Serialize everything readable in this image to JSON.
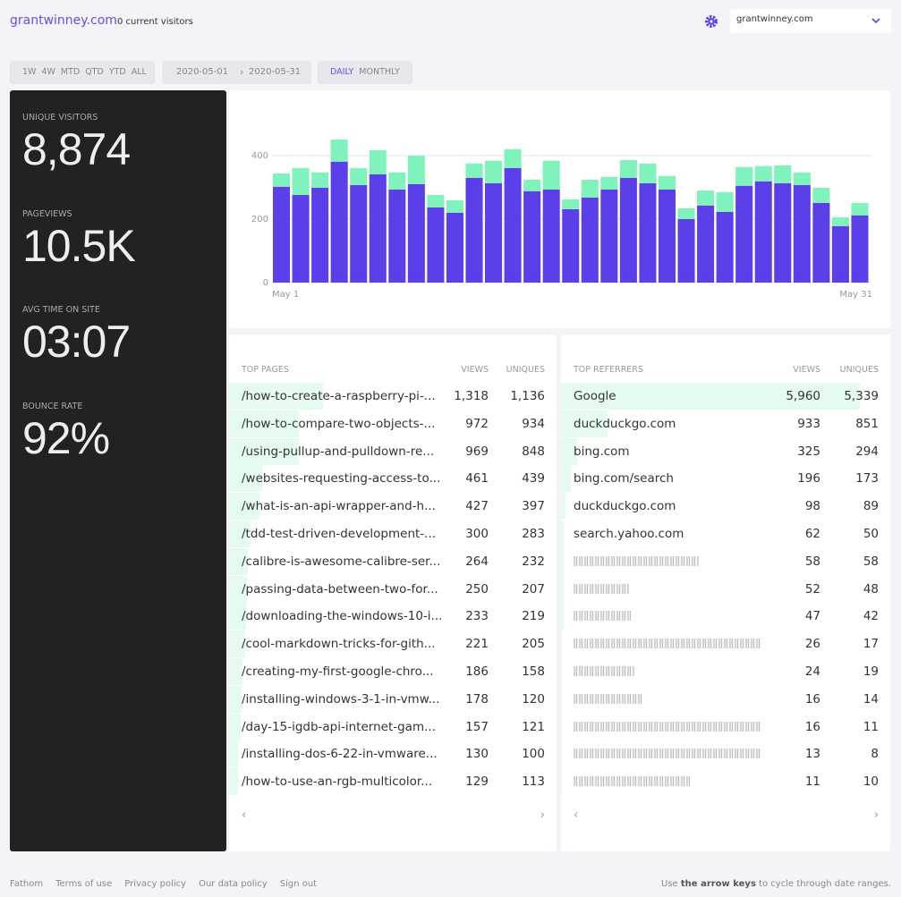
{
  "header": {
    "site": "grantwinney.com",
    "visitors": "0 current visitors",
    "site_select": "grantwinney.com"
  },
  "ranges": [
    "1W",
    "4W",
    "MTD",
    "QTD",
    "YTD",
    "ALL"
  ],
  "dates": {
    "from": "2020-05-01",
    "separator": "›",
    "to": "2020-05-31"
  },
  "intervals": [
    "DAILY",
    "MONTHLY"
  ],
  "stats": [
    {
      "label": "UNIQUE VISITORS",
      "value": "8,874"
    },
    {
      "label": "PAGEVIEWS",
      "value": "10.5K"
    },
    {
      "label": "AVG TIME ON SITE",
      "value": "03:07"
    },
    {
      "label": "BOUNCE RATE",
      "value": "92%"
    }
  ],
  "chart_data": {
    "type": "bar",
    "stacked": true,
    "categories": [
      "May 1",
      null,
      null,
      null,
      null,
      null,
      null,
      null,
      null,
      null,
      null,
      null,
      null,
      null,
      null,
      null,
      null,
      null,
      null,
      null,
      null,
      null,
      null,
      null,
      null,
      null,
      null,
      null,
      null,
      null,
      "May 31"
    ],
    "series": [
      {
        "color": "#5b3fe9",
        "values": [
          302,
          276,
          299,
          381,
          307,
          341,
          293,
          310,
          237,
          220,
          330,
          313,
          361,
          288,
          293,
          231,
          268,
          293,
          330,
          313,
          293,
          200,
          243,
          223,
          305,
          319,
          313,
          307,
          251,
          178,
          212
        ]
      },
      {
        "color": "#80f2bb",
        "values": [
          42,
          85,
          48,
          70,
          54,
          76,
          54,
          90,
          39,
          39,
          45,
          71,
          59,
          36,
          91,
          31,
          56,
          40,
          56,
          62,
          43,
          34,
          47,
          62,
          59,
          48,
          56,
          40,
          48,
          28,
          39
        ]
      }
    ],
    "ylim": [
      0,
      500
    ],
    "yticks": [
      0,
      200,
      400
    ],
    "grid": true
  },
  "top_pages": {
    "title": "TOP PAGES",
    "views_label": "VIEWS",
    "uniques_label": "UNIQUES",
    "rows": [
      {
        "name": "/how-to-create-a-raspberry-pi-...",
        "views": "1,318",
        "uniques": "1,136"
      },
      {
        "name": "/how-to-compare-two-objects-...",
        "views": "972",
        "uniques": "934"
      },
      {
        "name": "/using-pullup-and-pulldown-re...",
        "views": "969",
        "uniques": "848"
      },
      {
        "name": "/websites-requesting-access-to...",
        "views": "461",
        "uniques": "439"
      },
      {
        "name": "/what-is-an-api-wrapper-and-h...",
        "views": "427",
        "uniques": "397"
      },
      {
        "name": "/tdd-test-driven-development-...",
        "views": "300",
        "uniques": "283"
      },
      {
        "name": "/calibre-is-awesome-calibre-ser...",
        "views": "264",
        "uniques": "232"
      },
      {
        "name": "/passing-data-between-two-for...",
        "views": "250",
        "uniques": "207"
      },
      {
        "name": "/downloading-the-windows-10-i...",
        "views": "233",
        "uniques": "219"
      },
      {
        "name": "/cool-markdown-tricks-for-gith...",
        "views": "221",
        "uniques": "205"
      },
      {
        "name": "/creating-my-first-google-chro...",
        "views": "186",
        "uniques": "158"
      },
      {
        "name": "/installing-windows-3-1-in-vmw...",
        "views": "178",
        "uniques": "120"
      },
      {
        "name": "/day-15-igdb-api-internet-gam...",
        "views": "157",
        "uniques": "121"
      },
      {
        "name": "/installing-dos-6-22-in-vmware...",
        "views": "130",
        "uniques": "100"
      },
      {
        "name": "/how-to-use-an-rgb-multicolor...",
        "views": "129",
        "uniques": "113"
      }
    ],
    "pager": {
      "prev": "‹",
      "next": "›"
    }
  },
  "top_referrers": {
    "title": "TOP REFERRERS",
    "views_label": "VIEWS",
    "uniques_label": "UNIQUES",
    "rows": [
      {
        "name": "Google",
        "views": "5,960",
        "uniques": "5,339"
      },
      {
        "name": "duckduckgo.com",
        "views": "933",
        "uniques": "851"
      },
      {
        "name": "bing.com",
        "views": "325",
        "uniques": "294"
      },
      {
        "name": "bing.com/search",
        "views": "196",
        "uniques": "173"
      },
      {
        "name": "duckduckgo.com",
        "views": "98",
        "uniques": "89"
      },
      {
        "name": "search.yahoo.com",
        "views": "62",
        "uniques": "50"
      },
      {
        "views": "58",
        "uniques": "58"
      },
      {
        "views": "52",
        "uniques": "48"
      },
      {
        "views": "47",
        "uniques": "42"
      },
      {
        "views": "26",
        "uniques": "17"
      },
      {
        "views": "24",
        "uniques": "19"
      },
      {
        "views": "16",
        "uniques": "14"
      },
      {
        "views": "16",
        "uniques": "11"
      },
      {
        "views": "13",
        "uniques": "8"
      },
      {
        "views": "11",
        "uniques": "10"
      }
    ],
    "pager": {
      "prev": "‹",
      "next": "›"
    }
  },
  "footer": {
    "links": [
      "Fathom",
      "Terms of use",
      "Privacy policy",
      "Our data policy",
      "Sign out"
    ],
    "note": {
      "before": "Use ",
      "bold": "the arrow keys",
      "after": " to cycle through date ranges."
    }
  }
}
